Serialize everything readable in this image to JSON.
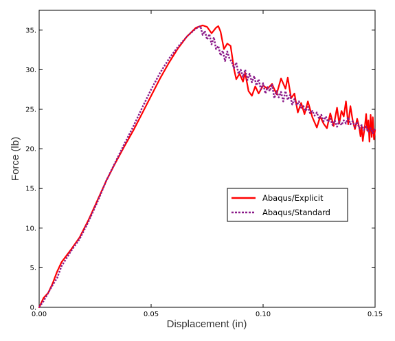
{
  "chart_data": {
    "type": "line",
    "title": "",
    "xlabel": "Displacement (in)",
    "ylabel": "Force (lb)",
    "xlim": [
      0,
      0.15
    ],
    "ylim": [
      0,
      37.5
    ],
    "x_ticks": [
      0.0,
      0.05,
      0.1,
      0.15
    ],
    "x_tick_labels": [
      "0.00",
      "0.05",
      "0.10",
      "0.15"
    ],
    "y_ticks": [
      0,
      5,
      10,
      15,
      20,
      25,
      30,
      35
    ],
    "y_tick_labels": [
      "0.",
      "5.",
      "10.",
      "15.",
      "20.",
      "25.",
      "30.",
      "35."
    ],
    "grid": false,
    "legend_position": "center-right",
    "series": [
      {
        "name": "Abaqus/Explicit",
        "color": "#ff0000",
        "style": "solid",
        "x": [
          0,
          0.002,
          0.004,
          0.006,
          0.008,
          0.01,
          0.014,
          0.018,
          0.022,
          0.026,
          0.03,
          0.034,
          0.038,
          0.042,
          0.046,
          0.05,
          0.054,
          0.058,
          0.062,
          0.066,
          0.07,
          0.073,
          0.075,
          0.077,
          0.079,
          0.08,
          0.081,
          0.0825,
          0.084,
          0.0855,
          0.087,
          0.088,
          0.0895,
          0.091,
          0.092,
          0.0935,
          0.095,
          0.0965,
          0.098,
          0.1,
          0.102,
          0.104,
          0.106,
          0.108,
          0.11,
          0.111,
          0.1125,
          0.114,
          0.1155,
          0.117,
          0.1185,
          0.12,
          0.122,
          0.124,
          0.1255,
          0.127,
          0.1285,
          0.13,
          0.1315,
          0.133,
          0.134,
          0.135,
          0.136,
          0.137,
          0.138,
          0.139,
          0.14,
          0.141,
          0.142,
          0.143,
          0.1435,
          0.144,
          0.1445,
          0.145,
          0.1455,
          0.146,
          0.1465,
          0.147,
          0.1475,
          0.148,
          0.1485,
          0.149,
          0.1495,
          0.15
        ],
        "y": [
          0,
          1.2,
          1.8,
          3.0,
          4.5,
          5.7,
          7.2,
          8.8,
          11.0,
          13.5,
          16.0,
          18.2,
          20.3,
          22.3,
          24.5,
          26.7,
          28.9,
          30.9,
          32.7,
          34.2,
          35.3,
          35.6,
          35.4,
          34.6,
          35.3,
          35.5,
          34.8,
          32.6,
          33.3,
          33.0,
          30.1,
          28.8,
          29.5,
          28.5,
          29.6,
          27.3,
          26.7,
          27.9,
          27.0,
          28.0,
          27.6,
          28.2,
          26.9,
          28.9,
          27.6,
          29.0,
          26.4,
          27.0,
          24.6,
          25.8,
          24.4,
          26.0,
          24.0,
          22.7,
          24.1,
          23.2,
          22.6,
          24.5,
          22.9,
          25.2,
          23.2,
          24.8,
          24.1,
          26.0,
          23.1,
          25.4,
          23.6,
          22.5,
          23.8,
          22.6,
          21.6,
          22.9,
          21.0,
          22.0,
          23.0,
          24.4,
          22.3,
          23.6,
          20.9,
          24.3,
          21.5,
          24.0,
          21.2,
          22.4
        ]
      },
      {
        "name": "Abaqus/Standard",
        "color": "#8b1a89",
        "style": "dotted",
        "x": [
          0,
          0.002,
          0.004,
          0.006,
          0.008,
          0.01,
          0.014,
          0.018,
          0.022,
          0.026,
          0.03,
          0.034,
          0.038,
          0.042,
          0.046,
          0.05,
          0.054,
          0.058,
          0.062,
          0.066,
          0.07,
          0.072,
          0.073,
          0.074,
          0.075,
          0.076,
          0.077,
          0.078,
          0.079,
          0.08,
          0.081,
          0.082,
          0.083,
          0.084,
          0.085,
          0.086,
          0.087,
          0.088,
          0.089,
          0.09,
          0.091,
          0.092,
          0.093,
          0.094,
          0.095,
          0.096,
          0.097,
          0.098,
          0.099,
          0.1,
          0.101,
          0.102,
          0.103,
          0.104,
          0.105,
          0.106,
          0.107,
          0.108,
          0.109,
          0.11,
          0.111,
          0.112,
          0.113,
          0.114,
          0.115,
          0.116,
          0.117,
          0.118,
          0.119,
          0.12,
          0.121,
          0.122,
          0.123,
          0.124,
          0.125,
          0.126,
          0.127,
          0.128,
          0.129,
          0.13,
          0.131,
          0.132,
          0.133,
          0.134,
          0.135,
          0.136,
          0.137,
          0.138,
          0.139,
          0.14,
          0.141,
          0.142,
          0.143,
          0.144,
          0.145,
          0.146,
          0.147,
          0.148,
          0.149,
          0.15
        ],
        "y": [
          0,
          0.8,
          1.8,
          2.8,
          3.7,
          5.2,
          7.0,
          8.6,
          10.8,
          13.3,
          16.0,
          18.3,
          20.6,
          22.8,
          25.2,
          27.5,
          29.6,
          31.4,
          32.9,
          34.2,
          35.2,
          35.5,
          34.4,
          34.9,
          33.8,
          34.5,
          33.2,
          34.1,
          32.6,
          33.0,
          31.8,
          32.4,
          31.1,
          32.3,
          31.4,
          31.0,
          30.2,
          30.9,
          29.5,
          30.0,
          29.1,
          30.0,
          28.7,
          29.5,
          28.4,
          29.2,
          28.0,
          28.8,
          27.5,
          28.3,
          27.0,
          27.8,
          27.3,
          28.2,
          26.4,
          27.3,
          26.5,
          27.2,
          26.0,
          27.3,
          26.2,
          26.8,
          25.6,
          26.3,
          25.5,
          26.0,
          25.2,
          25.4,
          24.8,
          25.3,
          24.5,
          24.8,
          24.2,
          24.6,
          23.8,
          24.3,
          23.5,
          24.1,
          23.4,
          23.8,
          23.0,
          23.6,
          22.8,
          23.5,
          23.0,
          23.6,
          23.2,
          24.0,
          23.1,
          23.5,
          22.8,
          23.4,
          22.6,
          23.0,
          22.4,
          22.8,
          22.2,
          22.6,
          22.0,
          22.6
        ]
      }
    ]
  }
}
